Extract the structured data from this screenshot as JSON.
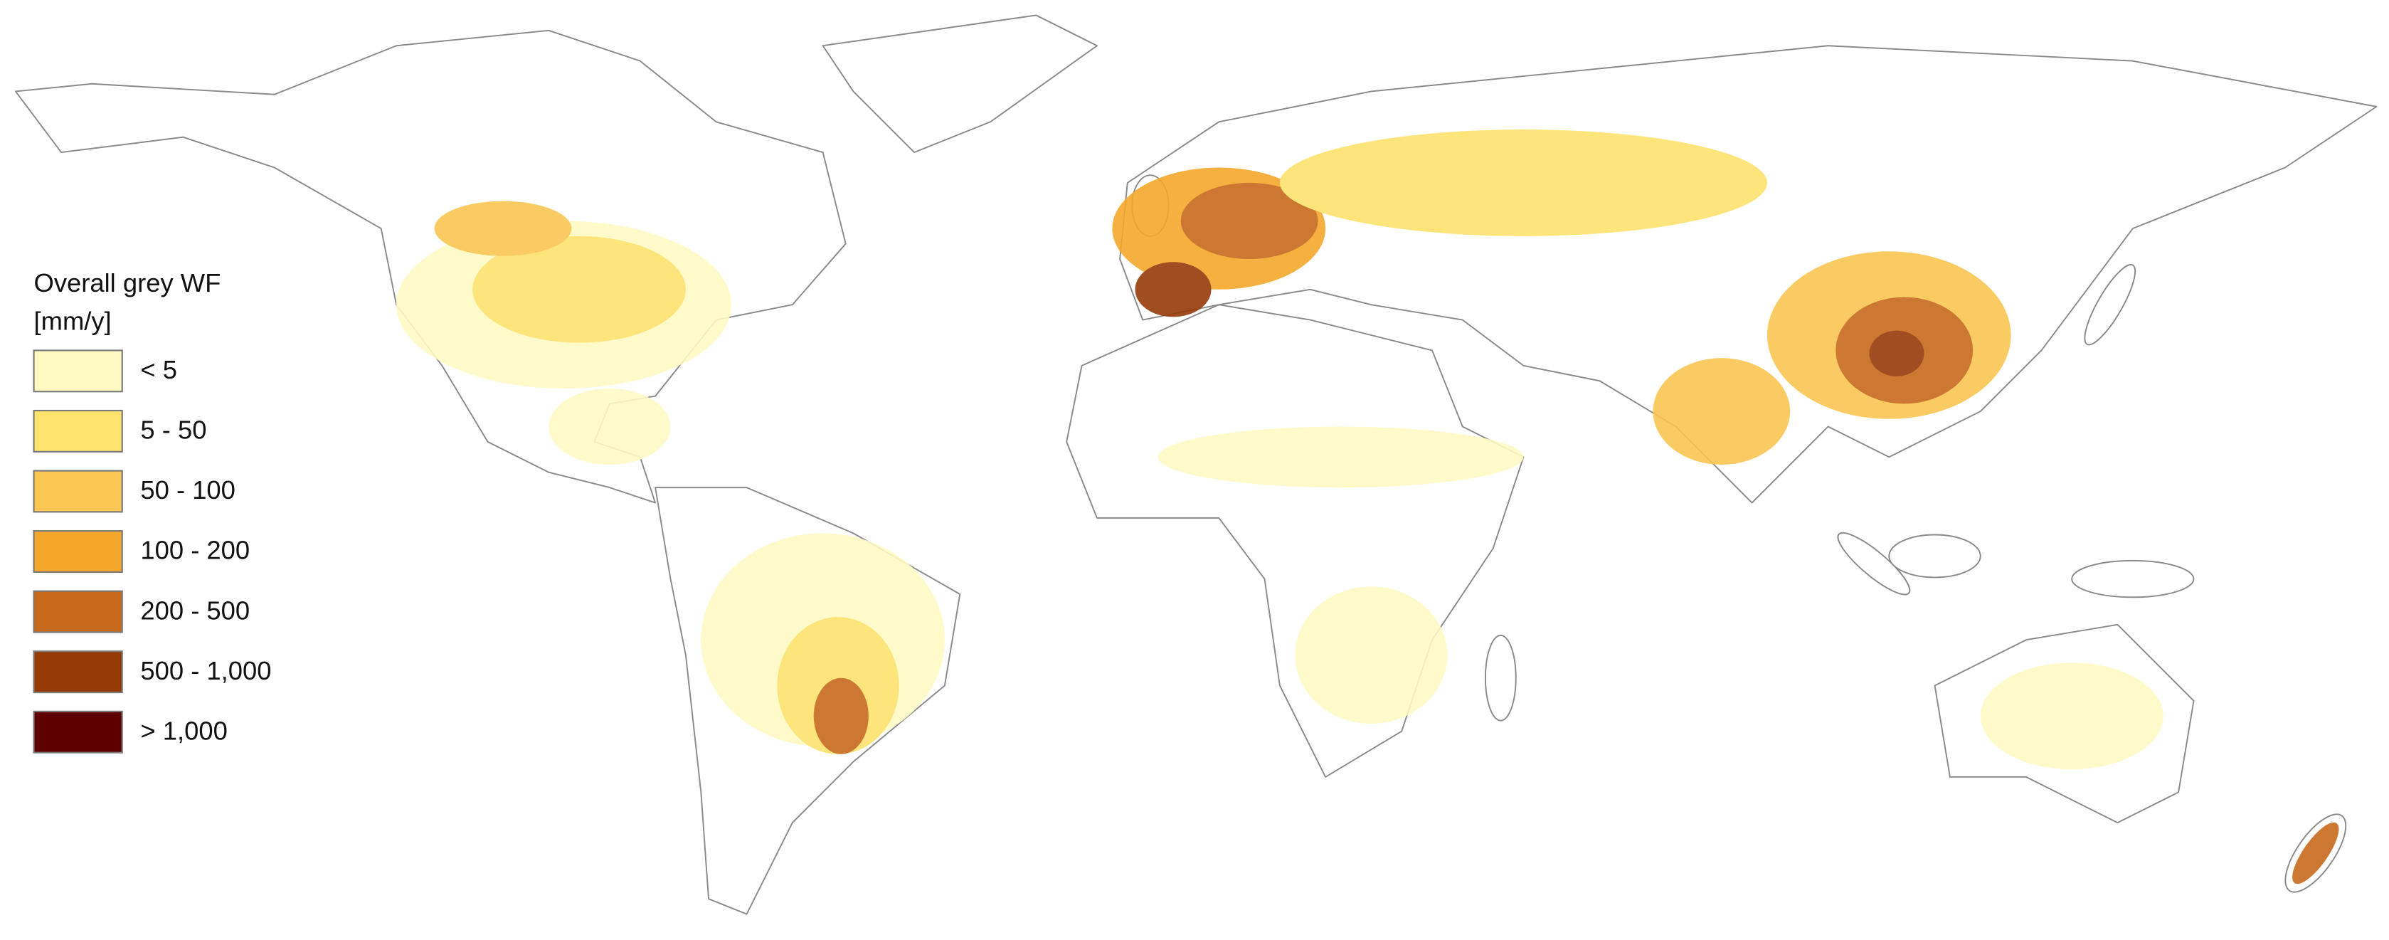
{
  "legend": {
    "title": [
      "Overall grey WF",
      "[mm/y]"
    ],
    "items": [
      {
        "label": "< 5",
        "color": "#fffac4"
      },
      {
        "label": "5 - 50",
        "color": "#fde36d"
      },
      {
        "label": "50 - 100",
        "color": "#fbc652"
      },
      {
        "label": "100 - 200",
        "color": "#f4a72a"
      },
      {
        "label": "200 - 500",
        "color": "#c8691b"
      },
      {
        "label": "500 - 1,000",
        "color": "#963a08"
      },
      {
        "label": "> 1,000",
        "color": "#5e0000"
      }
    ]
  }
}
